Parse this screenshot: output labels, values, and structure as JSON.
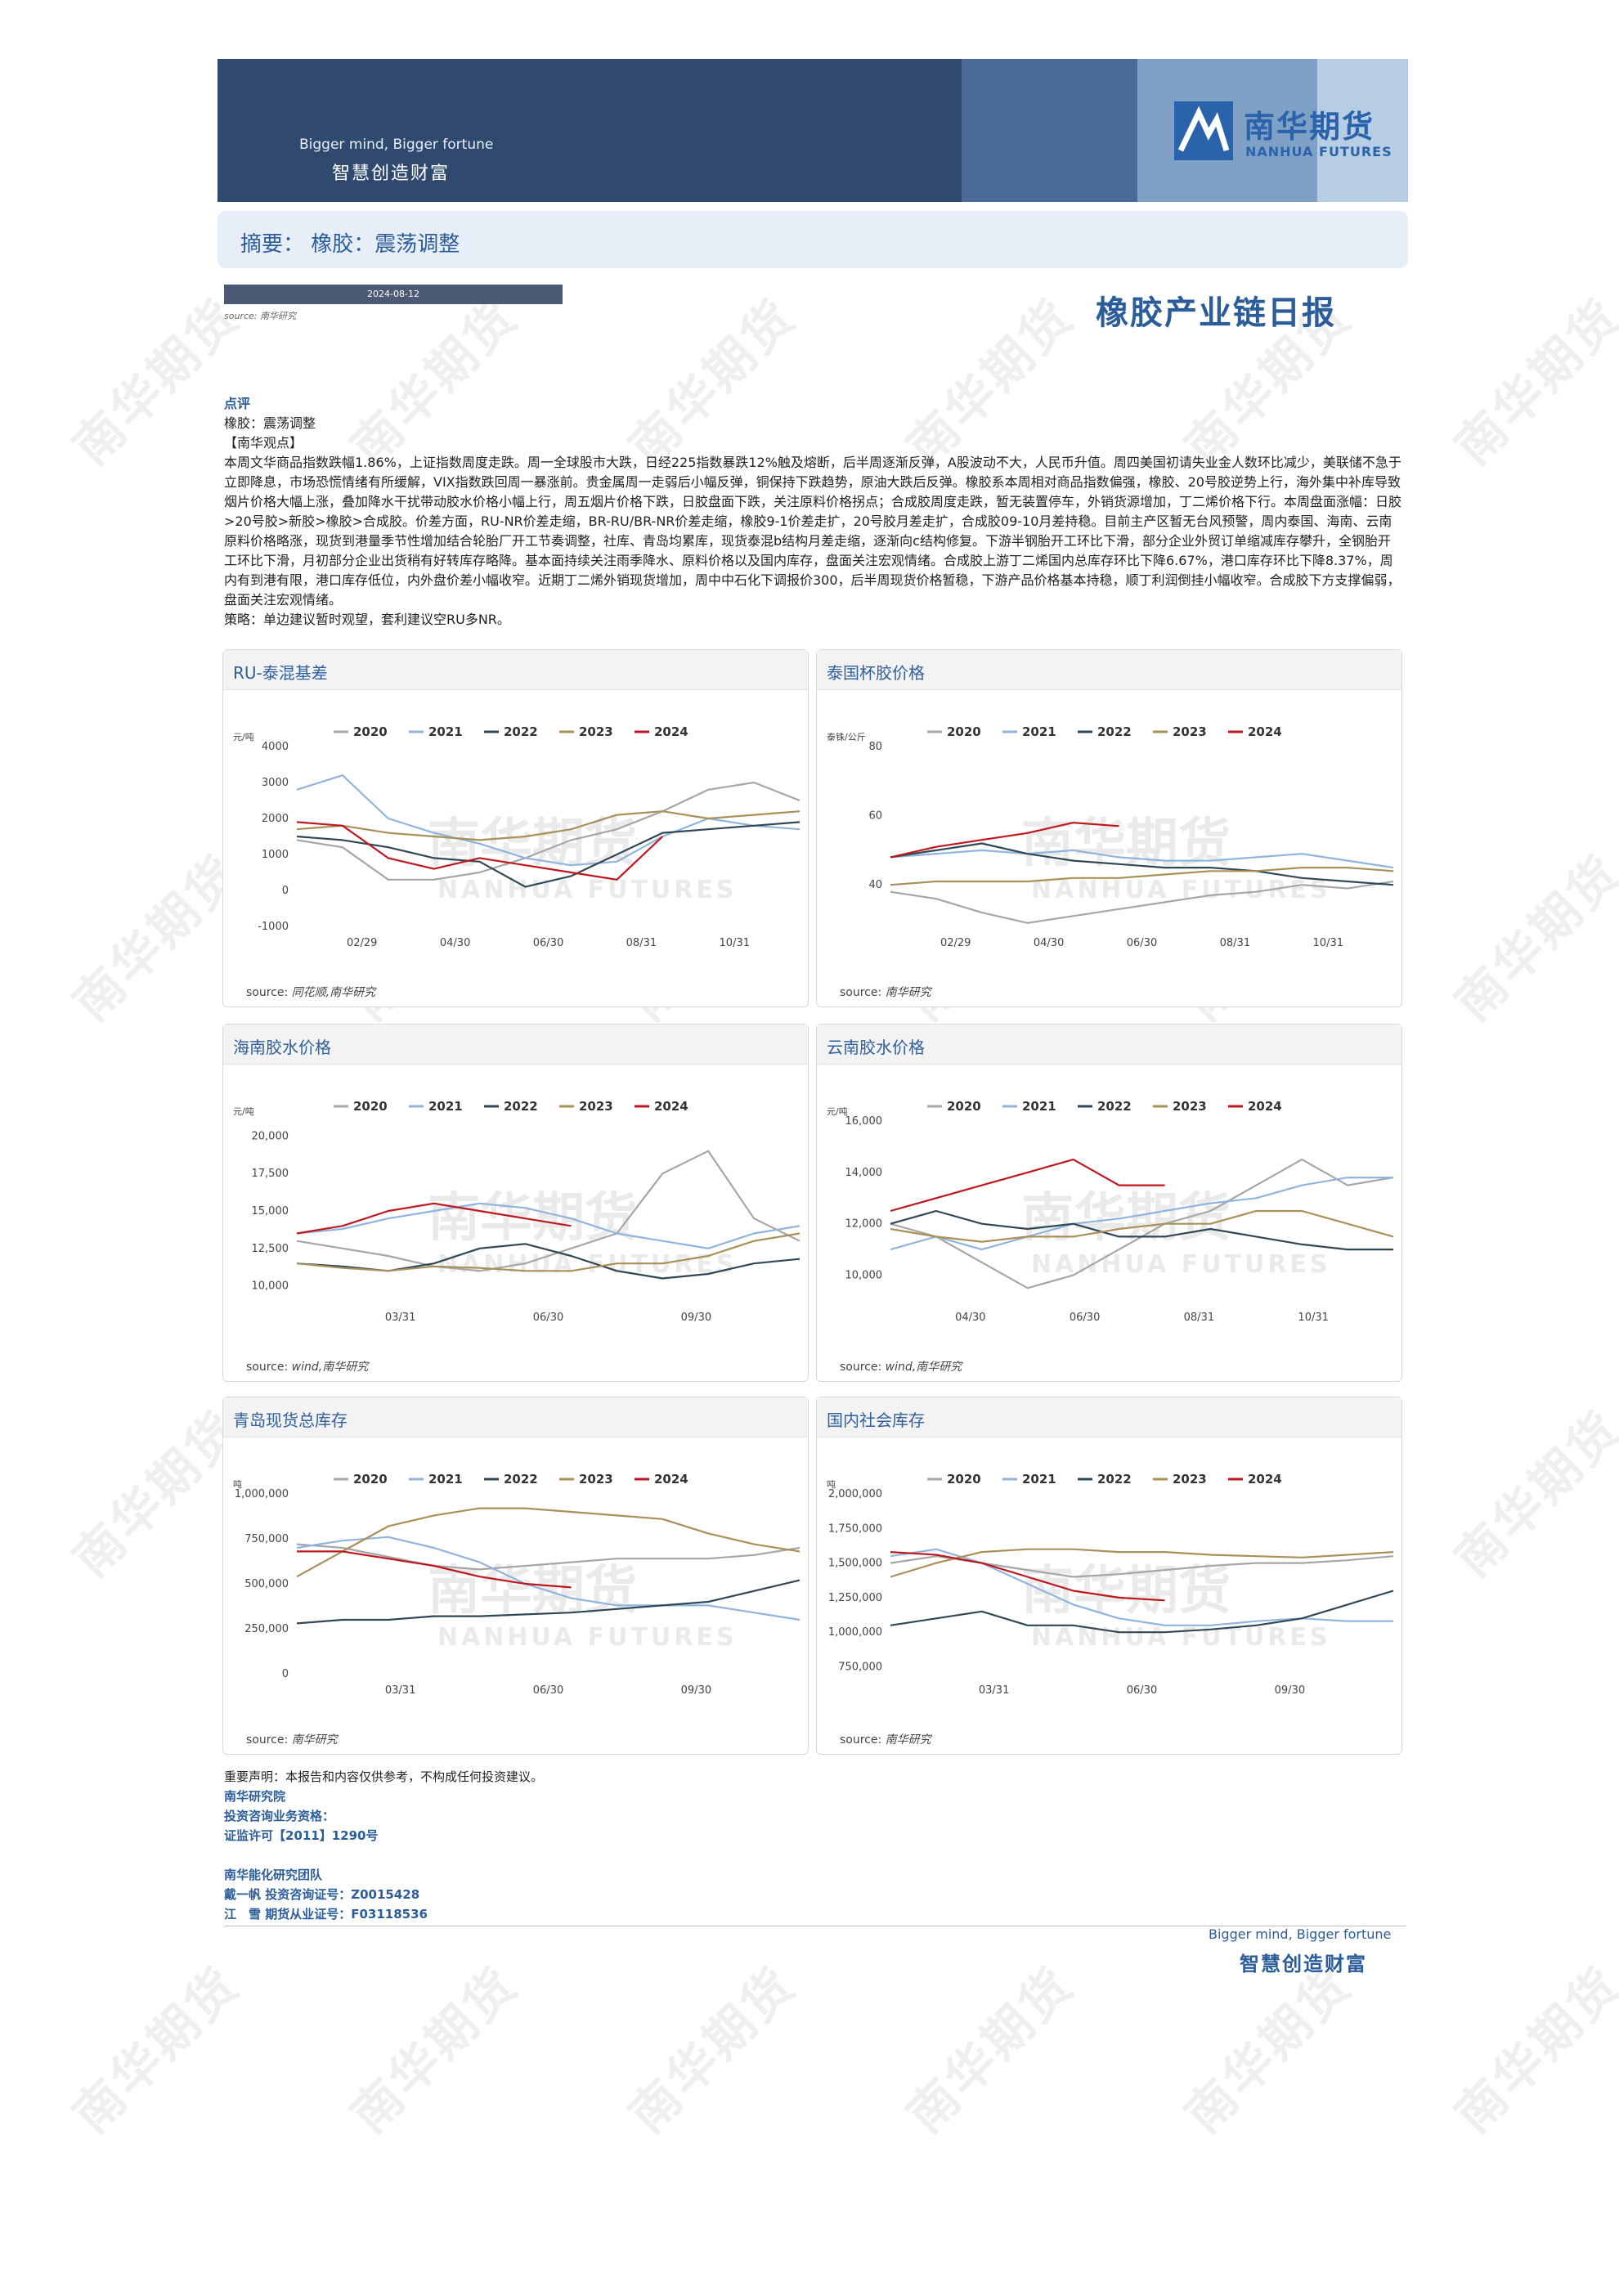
{
  "header": {
    "slogan_en": "Bigger mind, Bigger fortune",
    "slogan_cn": "智慧创造财富",
    "logo_cn": "南华期货",
    "logo_en": "NANHUA FUTURES"
  },
  "summary": "摘要：  橡胶：震荡调整",
  "date": "2024-08-12",
  "source_top": "source:  南华研究",
  "report_title": "橡胶产业链日报",
  "comment": {
    "heading": "点评",
    "line1": "橡胶：震荡调整",
    "view_heading": "【南华观点】",
    "body": "本周文华商品指数跌幅1.86%，上证指数周度走跌。周一全球股市大跌，日经225指数暴跌12%触及熔断，后半周逐渐反弹，A股波动不大，人民币升值。周四美国初请失业金人数环比减少，美联储不急于立即降息，市场恐慌情绪有所缓解，VIX指数跌回周一暴涨前。贵金属周一走弱后小幅反弹，铜保持下跌趋势，原油大跌后反弹。橡胶系本周相对商品指数偏强，橡胶、20号胶逆势上行，海外集中补库导致烟片价格大幅上涨，叠加降水干扰带动胶水价格小幅上行，周五烟片价格下跌，日胶盘面下跌，关注原料价格拐点；合成胶周度走跌，暂无装置停车，外销货源增加，丁二烯价格下行。本周盘面涨幅：日胶>20号胶>新胶>橡胶>合成胶。价差方面，RU-NR价差走缩，BR-RU/BR-NR价差走缩，橡胶9-1价差走扩，20号胶月差走扩，合成胶09-10月差持稳。目前主产区暂无台风预警，周内泰国、海南、云南原料价格略涨，现货到港量季节性增加结合轮胎厂开工节奏调整，社库、青岛均累库，现货泰混b结构月差走缩，逐渐向c结构修复。下游半钢胎开工环比下滑，部分企业外贸订单缩减库存攀升，全钢胎开工环比下滑，月初部分企业出货稍有好转库存略降。基本面持续关注雨季降水、原料价格以及国内库存，盘面关注宏观情绪。合成胶上游丁二烯国内总库存环比下降6.67%，港口库存环比下降8.37%，周内有到港有限，港口库存低位，内外盘价差小幅收窄。近期丁二烯外销现货增加，周中中石化下调报价300，后半周现货价格暂稳，下游产品价格基本持稳，顺丁利润倒挂小幅收窄。合成胶下方支撑偏弱，盘面关注宏观情绪。",
    "strategy": "策略：单边建议暂时观望，套利建议空RU多NR。"
  },
  "watermark": "南华期货",
  "chart_wm_cn": "南华期货",
  "chart_wm_en": "NANHUA FUTURES",
  "legend_years": [
    "2020",
    "2021",
    "2022",
    "2023",
    "2024"
  ],
  "series_colors": {
    "2020": "#a6a6a6",
    "2021": "#8fb4de",
    "2022": "#2f4858",
    "2023": "#a89058",
    "2024": "#c0171f"
  },
  "charts": [
    {
      "title": "RU-泰混基差",
      "unit": "元/吨",
      "yticks": [
        "4000",
        "3000",
        "2000",
        "1000",
        "0",
        "-1000"
      ],
      "xticks": [
        "02/29",
        "04/30",
        "06/30",
        "08/31",
        "10/31"
      ],
      "source": "source:",
      "source_italic": "同花顺,南华研究",
      "chart_data": {
        "type": "line",
        "x_range": "01/01-12/31",
        "ylim": [
          -1000,
          4000
        ],
        "series": [
          {
            "name": "2020",
            "values": [
              1400,
              1200,
              300,
              300,
              500,
              900,
              1400,
              1700,
              2200,
              2800,
              3000,
              2500
            ]
          },
          {
            "name": "2021",
            "values": [
              2800,
              3200,
              2000,
              1600,
              1300,
              900,
              700,
              800,
              1500,
              2000,
              1800,
              1700
            ]
          },
          {
            "name": "2022",
            "values": [
              1500,
              1400,
              1200,
              900,
              800,
              100,
              400,
              1000,
              1600,
              1700,
              1800,
              1900
            ]
          },
          {
            "name": "2023",
            "values": [
              1700,
              1800,
              1600,
              1500,
              1400,
              1500,
              1700,
              2100,
              2200,
              2000,
              2100,
              2200
            ]
          },
          {
            "name": "2024",
            "values": [
              1900,
              1800,
              900,
              600,
              900,
              700,
              500,
              300,
              1500
            ]
          }
        ]
      }
    },
    {
      "title": "泰国杯胶价格",
      "unit": "泰铢/公斤",
      "yticks": [
        "80",
        "60",
        "40"
      ],
      "xticks": [
        "02/29",
        "04/30",
        "06/30",
        "08/31",
        "10/31"
      ],
      "source": "source:",
      "source_italic": "南华研究",
      "chart_data": {
        "type": "line",
        "x_range": "01/01-12/31",
        "ylim": [
          28,
          80
        ],
        "series": [
          {
            "name": "2020",
            "values": [
              38,
              36,
              32,
              29,
              31,
              33,
              35,
              37,
              38,
              40,
              39,
              41
            ]
          },
          {
            "name": "2021",
            "values": [
              48,
              49,
              50,
              49,
              50,
              48,
              47,
              47,
              48,
              49,
              47,
              45
            ]
          },
          {
            "name": "2022",
            "values": [
              48,
              50,
              52,
              49,
              47,
              46,
              45,
              45,
              44,
              42,
              41,
              40
            ]
          },
          {
            "name": "2023",
            "values": [
              40,
              41,
              41,
              41,
              42,
              42,
              43,
              44,
              44,
              45,
              45,
              44
            ]
          },
          {
            "name": "2024",
            "values": [
              48,
              51,
              53,
              55,
              58,
              57
            ]
          }
        ]
      }
    },
    {
      "title": "海南胶水价格",
      "unit": "元/吨",
      "yticks": [
        "20,000",
        "17,500",
        "15,000",
        "12,500",
        "10,000"
      ],
      "xticks": [
        "03/31",
        "06/30",
        "09/30"
      ],
      "source": "source:",
      "source_italic": "wind,南华研究",
      "chart_data": {
        "type": "line",
        "x_range": "01/01-12/31",
        "ylim": [
          9000,
          21000
        ],
        "series": [
          {
            "name": "2020",
            "values": [
              13000,
              12500,
              12000,
              11300,
              11000,
              11500,
              12500,
              13500,
              17500,
              19000,
              14500,
              13000
            ]
          },
          {
            "name": "2021",
            "values": [
              13500,
              13800,
              14500,
              15000,
              15500,
              15200,
              14500,
              13500,
              13000,
              12500,
              13500,
              14000
            ]
          },
          {
            "name": "2022",
            "values": [
              11500,
              11300,
              11000,
              11500,
              12500,
              12800,
              12000,
              11000,
              10500,
              10800,
              11500,
              11800
            ]
          },
          {
            "name": "2023",
            "values": [
              11500,
              11200,
              11000,
              11300,
              11200,
              11000,
              11000,
              11500,
              11500,
              12000,
              13000,
              13500
            ]
          },
          {
            "name": "2024",
            "values": [
              13500,
              14000,
              15000,
              15500,
              15000,
              14500,
              14000
            ]
          }
        ]
      }
    },
    {
      "title": "云南胶水价格",
      "unit": "元/吨",
      "yticks": [
        "16,000",
        "14,000",
        "12,000",
        "10,000"
      ],
      "xticks": [
        "04/30",
        "06/30",
        "08/31",
        "10/31"
      ],
      "source": "source:",
      "source_italic": "wind,南华研究",
      "chart_data": {
        "type": "line",
        "x_range": "01/01-12/31",
        "ylim": [
          9000,
          16000
        ],
        "series": [
          {
            "name": "2020",
            "values": [
              12000,
              11500,
              10500,
              9500,
              10000,
              11000,
              12000,
              12500,
              13500,
              14500,
              13500,
              13800
            ]
          },
          {
            "name": "2021",
            "values": [
              11000,
              11500,
              11000,
              11500,
              12000,
              12200,
              12500,
              12800,
              13000,
              13500,
              13800,
              13800
            ]
          },
          {
            "name": "2022",
            "values": [
              12000,
              12500,
              12000,
              11800,
              12000,
              11500,
              11500,
              11800,
              11500,
              11200,
              11000,
              11000
            ]
          },
          {
            "name": "2023",
            "values": [
              11800,
              11500,
              11300,
              11500,
              11500,
              11800,
              12000,
              12000,
              12500,
              12500,
              12000,
              11500
            ]
          },
          {
            "name": "2024",
            "values": [
              12500,
              13000,
              13500,
              14000,
              14500,
              13500,
              13500
            ]
          }
        ]
      }
    },
    {
      "title": "青岛现货总库存",
      "unit": "吨",
      "yticks": [
        "1,000,000",
        "750,000",
        "500,000",
        "250,000",
        "0"
      ],
      "xticks": [
        "03/31",
        "06/30",
        "09/30"
      ],
      "source": "source:",
      "source_italic": "南华研究",
      "chart_data": {
        "type": "line",
        "x_range": "01/01-12/31",
        "ylim": [
          0,
          1000000
        ],
        "series": [
          {
            "name": "2020",
            "values": [
              720000,
              700000,
              650000,
              600000,
              580000,
              600000,
              620000,
              640000,
              640000,
              640000,
              660000,
              700000
            ]
          },
          {
            "name": "2021",
            "values": [
              700000,
              740000,
              760000,
              700000,
              620000,
              500000,
              420000,
              380000,
              380000,
              380000,
              340000,
              300000
            ]
          },
          {
            "name": "2022",
            "values": [
              280000,
              300000,
              300000,
              320000,
              320000,
              330000,
              340000,
              360000,
              380000,
              400000,
              460000,
              520000
            ]
          },
          {
            "name": "2023",
            "values": [
              540000,
              680000,
              820000,
              880000,
              920000,
              920000,
              900000,
              880000,
              860000,
              780000,
              720000,
              680000
            ]
          },
          {
            "name": "2024",
            "values": [
              680000,
              680000,
              640000,
              600000,
              540000,
              500000,
              480000
            ]
          }
        ]
      }
    },
    {
      "title": "国内社会库存",
      "unit": "吨",
      "yticks": [
        "2,000,000",
        "1,750,000",
        "1,500,000",
        "1,250,000",
        "1,000,000",
        "750,000"
      ],
      "xticks": [
        "03/31",
        "06/30",
        "09/30"
      ],
      "source": "source:",
      "source_italic": "南华研究",
      "chart_data": {
        "type": "line",
        "x_range": "01/01-12/31",
        "ylim": [
          700000,
          2000000
        ],
        "series": [
          {
            "name": "2020",
            "values": [
              1500000,
              1550000,
              1500000,
              1450000,
              1400000,
              1420000,
              1450000,
              1480000,
              1500000,
              1500000,
              1520000,
              1550000
            ]
          },
          {
            "name": "2021",
            "values": [
              1550000,
              1600000,
              1500000,
              1350000,
              1200000,
              1100000,
              1050000,
              1050000,
              1080000,
              1100000,
              1080000,
              1080000
            ]
          },
          {
            "name": "2022",
            "values": [
              1050000,
              1100000,
              1150000,
              1050000,
              1050000,
              1000000,
              1000000,
              1020000,
              1050000,
              1100000,
              1200000,
              1300000
            ]
          },
          {
            "name": "2023",
            "values": [
              1400000,
              1500000,
              1580000,
              1600000,
              1600000,
              1580000,
              1580000,
              1560000,
              1550000,
              1540000,
              1560000,
              1580000
            ]
          },
          {
            "name": "2024",
            "values": [
              1580000,
              1560000,
              1500000,
              1400000,
              1300000,
              1250000,
              1230000
            ]
          }
        ]
      }
    }
  ],
  "footer": {
    "disclaimer": "重要声明：本报告和内容仅供参考，不构成任何投资建议。",
    "institute": "南华研究院",
    "qual_label": "投资咨询业务资格：",
    "license": "证监许可【2011】1290号",
    "team": "南华能化研究团队",
    "analyst1": "戴一帆 投资咨询证号：Z0015428",
    "analyst2": "江　雪 期货从业证号：F03118536",
    "slogan_en": "Bigger mind, Bigger fortune",
    "slogan_cn": "智慧创造财富"
  }
}
